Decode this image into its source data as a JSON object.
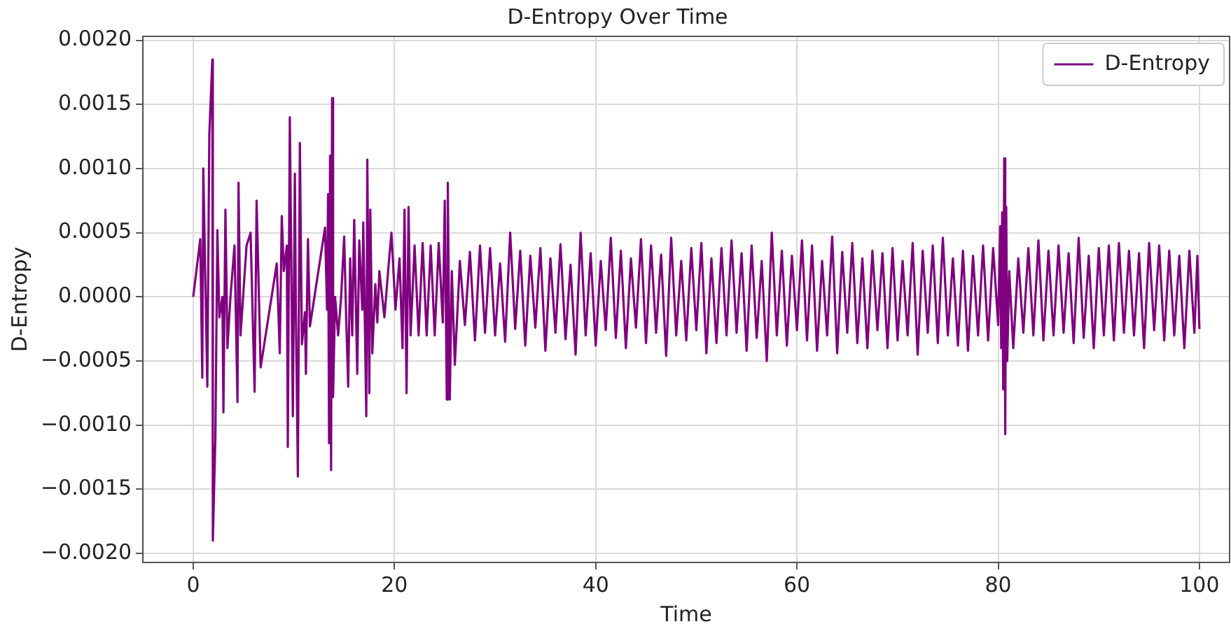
{
  "chart_data": {
    "type": "line",
    "title": "D-Entropy Over Time",
    "xlabel": "Time",
    "ylabel": "D-Entropy",
    "xlim": [
      -5,
      103
    ],
    "ylim": [
      -0.00207,
      0.00203
    ],
    "xticks": [
      0,
      20,
      40,
      60,
      80,
      100
    ],
    "yticks": [
      {
        "value": -0.002,
        "label": "−0.0020"
      },
      {
        "value": -0.0015,
        "label": "−0.0015"
      },
      {
        "value": -0.001,
        "label": "−0.0010"
      },
      {
        "value": -0.0005,
        "label": "−0.0005"
      },
      {
        "value": 0,
        "label": "0.0000"
      },
      {
        "value": 0.0005,
        "label": "0.0005"
      },
      {
        "value": 0.001,
        "label": "0.0010"
      },
      {
        "value": 0.0015,
        "label": "0.0015"
      },
      {
        "value": 0.002,
        "label": "0.0020"
      }
    ],
    "grid": true,
    "legend": "top right",
    "marker": "none",
    "line_style": "solid",
    "series": [
      {
        "name": "D-Entropy",
        "color": "#800080",
        "x": [
          0,
          0.7,
          0.9,
          1.0,
          1.4,
          1.6,
          1.9,
          1.95,
          2.2,
          2.4,
          2.6,
          2.9,
          3.0,
          3.2,
          3.4,
          3.7,
          4.1,
          4.4,
          4.5,
          4.7,
          5.3,
          5.7,
          6.1,
          6.3,
          6.7,
          8.3,
          8.6,
          8.8,
          9.0,
          9.3,
          9.4,
          9.6,
          9.9,
          10.1,
          10.2,
          10.4,
          10.6,
          10.8,
          11.1,
          11.2,
          11.4,
          11.6,
          13.1,
          13.3,
          13.4,
          13.5,
          13.6,
          13.7,
          13.8,
          13.9,
          14.1,
          14.4,
          14.7,
          15.0,
          15.2,
          15.4,
          15.6,
          15.8,
          16.0,
          16.3,
          16.5,
          16.8,
          16.9,
          17.2,
          17.3,
          17.5,
          17.6,
          17.8,
          18.1,
          18.3,
          18.5,
          19.0,
          19.4,
          19.7,
          20.1,
          20.5,
          20.8,
          21.0,
          21.2,
          21.4,
          21.6,
          22.0,
          22.4,
          22.8,
          23.2,
          23.6,
          24.0,
          24.4,
          24.8,
          25.0,
          25.2,
          25.3,
          25.5,
          25.7,
          26.0,
          26.5,
          27,
          27.5,
          28,
          28.5,
          29,
          29.5,
          30,
          30.5,
          31,
          31.5,
          32,
          32.5,
          33,
          33.5,
          34,
          34.5,
          35,
          35.5,
          36,
          36.5,
          37,
          37.5,
          38,
          38.5,
          39,
          39.5,
          40,
          40.5,
          41,
          41.5,
          42,
          42.5,
          43,
          43.5,
          44,
          44.5,
          45,
          45.5,
          46,
          46.5,
          47,
          47.5,
          48,
          48.5,
          49,
          49.5,
          50,
          50.5,
          51,
          51.5,
          52,
          52.5,
          53,
          53.5,
          54,
          54.5,
          55,
          55.5,
          56,
          56.5,
          57,
          57.5,
          58,
          58.5,
          59,
          59.5,
          60,
          60.5,
          61,
          61.5,
          62,
          62.5,
          63,
          63.5,
          64,
          64.5,
          65,
          65.5,
          66,
          66.5,
          67,
          67.5,
          68,
          68.5,
          69,
          69.5,
          70,
          70.5,
          71,
          71.5,
          72,
          72.5,
          73,
          73.5,
          74,
          74.5,
          75,
          75.5,
          76,
          76.5,
          77,
          77.5,
          78,
          78.5,
          79,
          79.5,
          80,
          80.2,
          80.3,
          80.4,
          80.5,
          80.6,
          80.7,
          80.8,
          80.9,
          81.1,
          81.5,
          82,
          82.5,
          83,
          83.5,
          84,
          84.5,
          85,
          85.5,
          86,
          86.5,
          87,
          87.5,
          88,
          88.5,
          89,
          89.5,
          90,
          90.5,
          91,
          91.5,
          92,
          92.5,
          93,
          93.5,
          94,
          94.5,
          95,
          95.5,
          96,
          96.5,
          97,
          97.5,
          98,
          98.5,
          99,
          99.5,
          99.8,
          100
        ],
        "values": [
          0,
          0.00045,
          -0.00063,
          0.001,
          -0.0007,
          0.00127,
          0.00185,
          -0.0019,
          -0.0011,
          0.00052,
          -0.00016,
          0,
          -0.0009,
          0.00068,
          -0.0004,
          0,
          0.0004,
          -0.00082,
          0.00089,
          -0.0003,
          0.0004,
          0.0005,
          -0.00074,
          0.00075,
          -0.00055,
          0.00026,
          -0.00044,
          0.00063,
          0.0002,
          0.0004,
          -0.00117,
          0.0014,
          -0.00093,
          0.00096,
          -0.0001,
          -0.0014,
          0.0012,
          -0.00037,
          -0.00012,
          -0.0006,
          0.00045,
          -0.00023,
          0.00054,
          -0.0001,
          0.0008,
          -0.00114,
          0.0011,
          -0.00135,
          0.00155,
          -0.00078,
          0,
          -0.0003,
          0,
          0.00047,
          -0.00016,
          -0.0007,
          0.0003,
          -0.0003,
          0.0006,
          -0.0006,
          0.00044,
          -0.0001,
          0.00058,
          -0.00093,
          0.00107,
          -0.00075,
          0.00068,
          -0.00044,
          0.0001,
          -0.0002,
          0.0002,
          -0.00016,
          0.00023,
          0.0005,
          -0.0001,
          0.0003,
          -0.0004,
          0.00068,
          -0.00075,
          0.0007,
          -0.0003,
          0.0004,
          -0.0003,
          0.00042,
          -0.0003,
          0.0004,
          -0.0003,
          0.00042,
          -0.0002,
          0.00075,
          -0.0008,
          0.00089,
          -0.0008,
          0.0002,
          -0.00053,
          0.00028,
          -0.00022,
          0.00035,
          -0.00034,
          0.0004,
          -0.00028,
          0.00038,
          -0.0003,
          0.00026,
          -0.00035,
          0.0005,
          -0.00025,
          0.00036,
          -0.00038,
          0.00032,
          -0.00024,
          0.00038,
          -0.00042,
          0.0003,
          -0.00028,
          0.00041,
          -0.00033,
          0.00025,
          -0.00045,
          0.0005,
          -0.0003,
          0.00034,
          -0.00038,
          0.00028,
          -0.00026,
          0.00046,
          -0.00032,
          0.00036,
          -0.0004,
          0.0003,
          -0.00024,
          0.00045,
          -0.00036,
          0.0004,
          -0.00028,
          0.00033,
          -0.00046,
          0.00046,
          -0.0003,
          0.00028,
          -0.00034,
          0.00038,
          -0.00026,
          0.00042,
          -0.00044,
          0.0003,
          -0.00036,
          0.00038,
          -0.0003,
          0.00044,
          -0.00028,
          0.00034,
          -0.00042,
          0.0004,
          -0.00032,
          0.00028,
          -0.0005,
          0.0005,
          -0.0003,
          0.00036,
          -0.00038,
          0.00032,
          -0.00026,
          0.00044,
          -0.00034,
          0.0004,
          -0.00042,
          0.00028,
          -0.0003,
          0.00047,
          -0.00044,
          0.00035,
          -0.00028,
          0.00042,
          -0.00036,
          0.0003,
          -0.0004,
          0.00036,
          -0.00026,
          0.00034,
          -0.0004,
          0.00038,
          -0.00034,
          0.00028,
          -0.0003,
          0.00042,
          -0.00045,
          0.00036,
          -0.00028,
          0.0004,
          -0.00036,
          0.00046,
          -0.0003,
          0.0003,
          -0.00038,
          0.00036,
          -0.00042,
          0.00032,
          -0.0003,
          0.0004,
          -0.00034,
          0.00038,
          -0.00022,
          0.00055,
          -0.0004,
          0.00066,
          -0.00072,
          0.00108,
          -0.00107,
          0.0007,
          -0.0005,
          0.0002,
          -0.0004,
          0.0003,
          -0.00028,
          0.00038,
          -0.0003,
          0.00044,
          -0.00034,
          0.00036,
          -0.0003,
          0.0004,
          -0.00028,
          0.00034,
          -0.00036,
          0.00046,
          -0.00032,
          0.00032,
          -0.0004,
          0.00038,
          -0.0003,
          0.0004,
          -0.00034,
          0.00042,
          -0.00028,
          0.00036,
          -0.0003,
          0.00034,
          -0.0004,
          0.00042,
          -0.00026,
          0.0004,
          -0.00034,
          0.00036,
          -0.0003,
          0.00032,
          -0.0004,
          0.00036,
          -0.00028,
          0.00032,
          -0.00025
        ]
      }
    ]
  }
}
